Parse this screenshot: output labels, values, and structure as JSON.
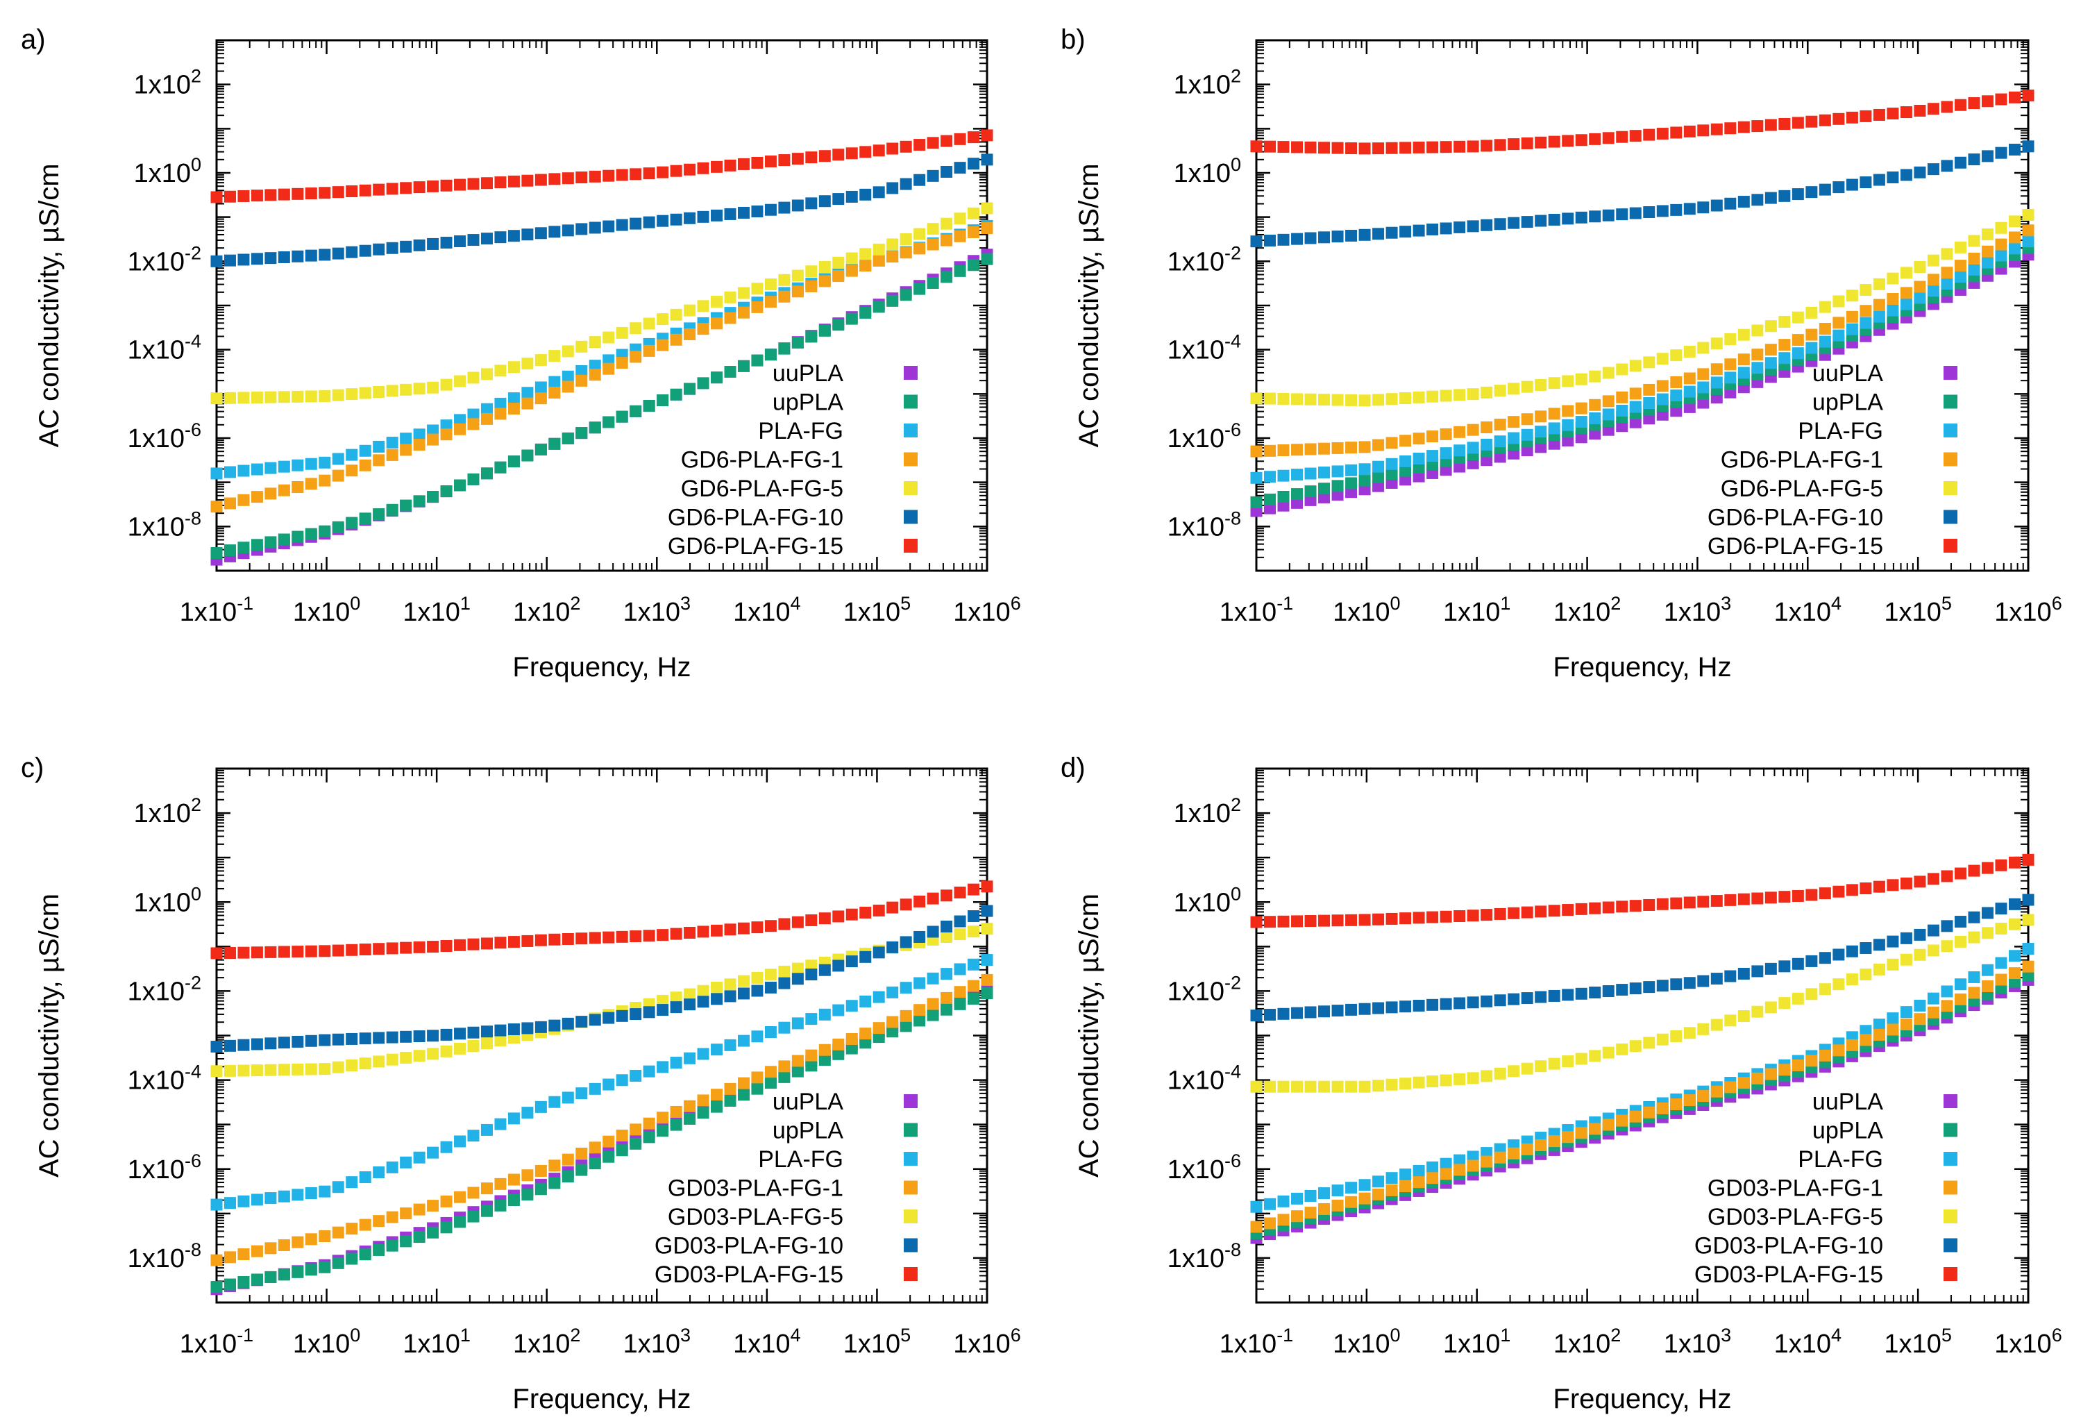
{
  "chart_data": [
    {
      "type": "scatter",
      "panel_label": "a)",
      "xlabel": "Frequency, Hz",
      "ylabel": "AC conductivity, µS/cm",
      "xscale": "log",
      "yscale": "log",
      "xlim": [
        0.1,
        1000000
      ],
      "ylim": [
        1e-09,
        1000
      ],
      "x_tick_exponents": [
        -1,
        0,
        1,
        2,
        3,
        4,
        5,
        6
      ],
      "y_tick_exponents": [
        -8,
        -6,
        -4,
        -2,
        0,
        2
      ],
      "tick_prefix": "1x10",
      "legend_position": "bottom-right",
      "x": [
        0.1,
        1,
        10,
        100,
        1000,
        10000,
        100000,
        1000000
      ],
      "series": [
        {
          "name": "uuPLA",
          "color": "#9e35d6",
          "log_values": [
            -8.75,
            -8.15,
            -7.3,
            -6.2,
            -5.2,
            -4.15,
            -3.0,
            -1.85
          ]
        },
        {
          "name": "upPLA",
          "color": "#12a078",
          "log_values": [
            -8.6,
            -8.1,
            -7.3,
            -6.2,
            -5.2,
            -4.15,
            -3.05,
            -1.95
          ]
        },
        {
          "name": "PLA-FG",
          "color": "#21b3e8",
          "log_values": [
            -6.8,
            -6.55,
            -5.8,
            -4.8,
            -3.8,
            -2.85,
            -2.0,
            -1.2
          ]
        },
        {
          "name": "GD6-PLA-FG-1",
          "color": "#f5a015",
          "log_values": [
            -7.55,
            -6.95,
            -6.0,
            -5.05,
            -3.95,
            -2.95,
            -2.0,
            -1.25
          ]
        },
        {
          "name": "GD6-PLA-FG-5",
          "color": "#f0e630",
          "log_values": [
            -5.1,
            -5.05,
            -4.85,
            -4.2,
            -3.35,
            -2.55,
            -1.75,
            -0.8
          ]
        },
        {
          "name": "GD6-PLA-FG-10",
          "color": "#0b6aae",
          "log_values": [
            -2.0,
            -1.85,
            -1.6,
            -1.35,
            -1.1,
            -0.85,
            -0.45,
            0.3
          ]
        },
        {
          "name": "GD6-PLA-FG-15",
          "color": "#f22a18",
          "log_values": [
            -0.55,
            -0.45,
            -0.3,
            -0.15,
            0.0,
            0.25,
            0.5,
            0.85
          ]
        }
      ]
    },
    {
      "type": "scatter",
      "panel_label": "b)",
      "xlabel": "Frequency, Hz",
      "ylabel": "AC conductivity, µS/cm",
      "xscale": "log",
      "yscale": "log",
      "xlim": [
        0.1,
        1000000
      ],
      "ylim": [
        1e-09,
        1000
      ],
      "x_tick_exponents": [
        -1,
        0,
        1,
        2,
        3,
        4,
        5,
        6
      ],
      "y_tick_exponents": [
        -8,
        -6,
        -4,
        -2,
        0,
        2
      ],
      "tick_prefix": "1x10",
      "legend_position": "bottom-right",
      "x": [
        0.1,
        1,
        10,
        100,
        1000,
        10000,
        100000,
        1000000
      ],
      "series": [
        {
          "name": "uuPLA",
          "color": "#9e35d6",
          "log_values": [
            -7.65,
            -7.15,
            -6.55,
            -5.95,
            -5.25,
            -4.3,
            -3.15,
            -1.85
          ]
        },
        {
          "name": "upPLA",
          "color": "#12a078",
          "log_values": [
            -7.45,
            -6.95,
            -6.35,
            -5.75,
            -5.05,
            -4.15,
            -3.0,
            -1.7
          ]
        },
        {
          "name": "PLA-FG",
          "color": "#21b3e8",
          "log_values": [
            -6.9,
            -6.7,
            -6.2,
            -5.6,
            -4.9,
            -4.0,
            -2.85,
            -1.55
          ]
        },
        {
          "name": "GD6-PLA-FG-1",
          "color": "#f5a015",
          "log_values": [
            -6.3,
            -6.2,
            -5.8,
            -5.3,
            -4.6,
            -3.7,
            -2.6,
            -1.3
          ]
        },
        {
          "name": "GD6-PLA-FG-5",
          "color": "#f0e630",
          "log_values": [
            -5.1,
            -5.15,
            -5.0,
            -4.65,
            -4.0,
            -3.2,
            -2.15,
            -0.95
          ]
        },
        {
          "name": "GD6-PLA-FG-10",
          "color": "#0b6aae",
          "log_values": [
            -1.55,
            -1.4,
            -1.2,
            -1.0,
            -0.8,
            -0.45,
            0.0,
            0.6
          ]
        },
        {
          "name": "GD6-PLA-FG-15",
          "color": "#f22a18",
          "log_values": [
            0.6,
            0.55,
            0.6,
            0.75,
            0.95,
            1.15,
            1.4,
            1.75
          ]
        }
      ]
    },
    {
      "type": "scatter",
      "panel_label": "c)",
      "xlabel": "Frequency, Hz",
      "ylabel": "AC conductivity, µS/cm",
      "xscale": "log",
      "yscale": "log",
      "xlim": [
        0.1,
        1000000
      ],
      "ylim": [
        1e-09,
        1000
      ],
      "x_tick_exponents": [
        -1,
        0,
        1,
        2,
        3,
        4,
        5,
        6
      ],
      "y_tick_exponents": [
        -8,
        -6,
        -4,
        -2,
        0,
        2
      ],
      "tick_prefix": "1x10",
      "legend_position": "bottom-right",
      "x": [
        0.1,
        1,
        10,
        100,
        1000,
        10000,
        100000,
        1000000
      ],
      "series": [
        {
          "name": "uuPLA",
          "color": "#9e35d6",
          "log_values": [
            -8.7,
            -8.15,
            -7.3,
            -6.3,
            -5.1,
            -4.0,
            -2.95,
            -1.9
          ]
        },
        {
          "name": "upPLA",
          "color": "#12a078",
          "log_values": [
            -8.65,
            -8.2,
            -7.4,
            -6.4,
            -5.2,
            -4.1,
            -3.05,
            -2.05
          ]
        },
        {
          "name": "PLA-FG",
          "color": "#21b3e8",
          "log_values": [
            -6.8,
            -6.5,
            -5.6,
            -4.55,
            -3.75,
            -2.95,
            -2.15,
            -1.3
          ]
        },
        {
          "name": "GD03-PLA-FG-1",
          "color": "#f5a015",
          "log_values": [
            -8.05,
            -7.5,
            -6.8,
            -6.0,
            -4.9,
            -3.85,
            -2.85,
            -1.75
          ]
        },
        {
          "name": "GD03-PLA-FG-5",
          "color": "#f0e630",
          "log_values": [
            -3.8,
            -3.75,
            -3.4,
            -2.9,
            -2.25,
            -1.65,
            -1.1,
            -0.6
          ]
        },
        {
          "name": "GD03-PLA-FG-10",
          "color": "#0b6aae",
          "log_values": [
            -3.25,
            -3.1,
            -3.0,
            -2.8,
            -2.45,
            -1.95,
            -1.15,
            -0.2
          ]
        },
        {
          "name": "GD03-PLA-FG-15",
          "color": "#f22a18",
          "log_values": [
            -1.15,
            -1.1,
            -1.0,
            -0.85,
            -0.75,
            -0.55,
            -0.2,
            0.35
          ]
        }
      ]
    },
    {
      "type": "scatter",
      "panel_label": "d)",
      "xlabel": "Frequency, Hz",
      "ylabel": "AC conductivity, µS/cm",
      "xscale": "log",
      "yscale": "log",
      "xlim": [
        0.1,
        1000000
      ],
      "ylim": [
        1e-09,
        1000
      ],
      "x_tick_exponents": [
        -1,
        0,
        1,
        2,
        3,
        4,
        5,
        6
      ],
      "y_tick_exponents": [
        -8,
        -6,
        -4,
        -2,
        0,
        2
      ],
      "tick_prefix": "1x10",
      "legend_position": "bottom-right",
      "x": [
        0.1,
        1,
        10,
        100,
        1000,
        10000,
        100000,
        1000000
      ],
      "series": [
        {
          "name": "uuPLA",
          "color": "#9e35d6",
          "log_values": [
            -7.55,
            -6.85,
            -6.1,
            -5.35,
            -4.6,
            -3.85,
            -2.9,
            -1.75
          ]
        },
        {
          "name": "upPLA",
          "color": "#12a078",
          "log_values": [
            -7.45,
            -6.75,
            -6.0,
            -5.25,
            -4.5,
            -3.75,
            -2.8,
            -1.65
          ]
        },
        {
          "name": "PLA-FG",
          "color": "#21b3e8",
          "log_values": [
            -6.85,
            -6.35,
            -5.7,
            -5.0,
            -4.3,
            -3.5,
            -2.35,
            -1.05
          ]
        },
        {
          "name": "GD03-PLA-FG-1",
          "color": "#f5a015",
          "log_values": [
            -7.3,
            -6.65,
            -5.9,
            -5.15,
            -4.4,
            -3.6,
            -2.65,
            -1.45
          ]
        },
        {
          "name": "GD03-PLA-FG-5",
          "color": "#f0e630",
          "log_values": [
            -4.15,
            -4.15,
            -3.95,
            -3.5,
            -2.9,
            -2.1,
            -1.2,
            -0.4
          ]
        },
        {
          "name": "GD03-PLA-FG-10",
          "color": "#0b6aae",
          "log_values": [
            -2.55,
            -2.4,
            -2.25,
            -2.05,
            -1.8,
            -1.35,
            -0.75,
            0.05
          ]
        },
        {
          "name": "GD03-PLA-FG-15",
          "color": "#f22a18",
          "log_values": [
            -0.45,
            -0.4,
            -0.3,
            -0.15,
            0.0,
            0.15,
            0.45,
            0.95
          ]
        }
      ]
    }
  ]
}
